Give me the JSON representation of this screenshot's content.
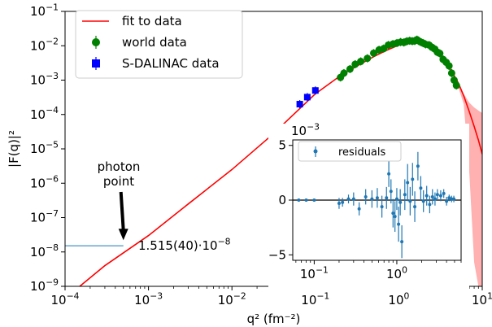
{
  "chart_data": [
    {
      "type": "line",
      "xscale": "log",
      "yscale": "log",
      "xlim": [
        0.0001,
        10
      ],
      "ylim": [
        1e-09,
        0.1
      ],
      "xlabel": "q² (fm⁻²)",
      "ylabel": "|F(q)|²",
      "grid": false,
      "legend_position": "top-left",
      "x_ticks": [
        {
          "value": 0.0001,
          "base": "10",
          "exp": "−4"
        },
        {
          "value": 0.001,
          "base": "10",
          "exp": "−3"
        },
        {
          "value": 0.01,
          "base": "10",
          "exp": "−2"
        },
        {
          "value": 0.1,
          "base": "10",
          "exp": "−1"
        },
        {
          "value": 1,
          "base": "10",
          "exp": "0"
        },
        {
          "value": 10,
          "base": "10",
          "exp": "1"
        }
      ],
      "y_ticks": [
        {
          "value": 1e-09,
          "base": "10",
          "exp": "−9"
        },
        {
          "value": 1e-08,
          "base": "10",
          "exp": "−8"
        },
        {
          "value": 1e-07,
          "base": "10",
          "exp": "−7"
        },
        {
          "value": 1e-06,
          "base": "10",
          "exp": "−6"
        },
        {
          "value": 1e-05,
          "base": "10",
          "exp": "−5"
        },
        {
          "value": 0.0001,
          "base": "10",
          "exp": "−4"
        },
        {
          "value": 0.001,
          "base": "10",
          "exp": "−3"
        },
        {
          "value": 0.01,
          "base": "10",
          "exp": "−2"
        },
        {
          "value": 0.1,
          "base": "10",
          "exp": "−1"
        }
      ],
      "legend": [
        {
          "label": "fit to data",
          "marker": "line",
          "color": "#ff0000"
        },
        {
          "label": "world data",
          "marker": "circle",
          "color": "#008000"
        },
        {
          "label": "S-DALINAC data",
          "marker": "square",
          "color": "#0000ff"
        }
      ],
      "series": [
        {
          "name": "fit to data",
          "color": "#ff0000",
          "x": [
            0.00015,
            0.0003,
            0.001,
            0.003,
            0.01,
            0.03,
            0.1,
            0.2,
            0.3,
            0.5,
            0.7,
            1.0,
            1.4,
            2.0,
            2.8,
            3.6,
            4.5,
            5.2,
            6.0,
            7.0,
            8.0,
            9.0,
            10.0
          ],
          "y": [
            1e-09,
            4e-09,
            3e-08,
            2.5e-07,
            2.5e-06,
            2.5e-05,
            0.0004,
            0.00135,
            0.0024,
            0.0048,
            0.0072,
            0.0105,
            0.0135,
            0.0125,
            0.0075,
            0.0035,
            0.0015,
            0.0008,
            0.00035,
            0.00012,
            4.5e-05,
            1.8e-05,
            7e-06
          ]
        },
        {
          "name": "fit uncertainty",
          "color": "#ffb0b0",
          "x": [
            5.0,
            6.0,
            7.0,
            8.0,
            9.0,
            10.0
          ],
          "upper": [
            0.0008,
            0.0004,
            0.00022,
            0.00016,
            0.00013,
            0.00011
          ],
          "lower": [
            0.0008,
            0.0002,
            2e-06,
            5e-09,
            1e-09,
            1e-09
          ]
        },
        {
          "name": "world data",
          "color": "#008000",
          "x": [
            0.2,
            0.22,
            0.26,
            0.3,
            0.35,
            0.42,
            0.5,
            0.58,
            0.66,
            0.75,
            0.85,
            0.95,
            1.05,
            1.15,
            1.25,
            1.35,
            1.45,
            1.55,
            1.65,
            1.8,
            1.95,
            2.1,
            2.3,
            2.5,
            2.7,
            2.9,
            3.1,
            3.4,
            3.7,
            4.0,
            4.3,
            4.6,
            4.9
          ],
          "y": [
            0.0012,
            0.0016,
            0.0021,
            0.0029,
            0.0035,
            0.0043,
            0.0061,
            0.0076,
            0.0083,
            0.0105,
            0.0112,
            0.012,
            0.0128,
            0.0125,
            0.0135,
            0.014,
            0.0136,
            0.0138,
            0.015,
            0.0131,
            0.012,
            0.011,
            0.0105,
            0.009,
            0.008,
            0.0065,
            0.006,
            0.004,
            0.0033,
            0.0026,
            0.0016,
            0.001,
            0.0007
          ]
        },
        {
          "name": "S-DALINAC data",
          "color": "#0000ff",
          "x": [
            0.065,
            0.08,
            0.1
          ],
          "y": [
            0.0002,
            0.00032,
            0.0005
          ]
        },
        {
          "name": "photon point line",
          "color": "#1f77b4",
          "x": [
            0.0001,
            0.0005
          ],
          "y": [
            1.515e-08,
            1.515e-08
          ]
        }
      ],
      "annotations": [
        {
          "text_lines": [
            "photon",
            "point"
          ],
          "arrow_to": {
            "x": 0.0005,
            "y": 2.2e-08
          }
        },
        {
          "text": "1.515(40)·10",
          "exp": "−8"
        }
      ]
    },
    {
      "type": "scatter",
      "inset": true,
      "xscale": "log",
      "xlim": [
        0.055,
        6.0
      ],
      "ylim": [
        -0.0055,
        0.0055
      ],
      "y_offset_text": {
        "base": "10",
        "exp": "−3"
      },
      "x_ticks": [
        {
          "value": 0.1,
          "base": "10",
          "exp": "−1"
        },
        {
          "value": 1,
          "base": "10",
          "exp": "0"
        }
      ],
      "y_ticks": [
        {
          "value": 0.005,
          "label": "5"
        },
        {
          "value": 0,
          "label": "0"
        },
        {
          "value": -0.005,
          "label": "−5"
        }
      ],
      "zero_line": true,
      "legend": [
        {
          "label": "residuals",
          "color": "#1f77b4"
        }
      ],
      "series": [
        {
          "name": "residuals",
          "color": "#1f77b4",
          "x": [
            0.065,
            0.08,
            0.1,
            0.2,
            0.22,
            0.26,
            0.3,
            0.35,
            0.42,
            0.5,
            0.58,
            0.66,
            0.75,
            0.8,
            0.85,
            0.9,
            0.95,
            1.0,
            1.05,
            1.1,
            1.15,
            1.25,
            1.35,
            1.45,
            1.55,
            1.65,
            1.8,
            1.95,
            2.1,
            2.3,
            2.5,
            2.7,
            2.9,
            3.1,
            3.4,
            3.7,
            4.0,
            4.3,
            4.6,
            4.9
          ],
          "y": [
            0,
            0,
            0,
            -0.0003,
            -0.0002,
            0.0001,
            0.0001,
            -0.0008,
            0.0003,
            0.0001,
            0.0002,
            -0.0006,
            0.0002,
            0.0024,
            0.0008,
            -0.0012,
            -0.0015,
            0.0001,
            -0.0022,
            -0.0002,
            -0.0038,
            0.0005,
            0.0016,
            -0.0001,
            0.0019,
            -0.0006,
            0.0031,
            0.0011,
            -0.0001,
            0.0004,
            -0.0004,
            0.0003,
            0.0001,
            0.0005,
            0.0004,
            0.0006,
            -0.0001,
            0.0002,
            0.0001,
            0.0001
          ],
          "err": [
            0.0001,
            0.0001,
            0.0001,
            0.0005,
            0.0004,
            0.0004,
            0.0006,
            0.0006,
            0.0007,
            0.0008,
            0.0009,
            0.001,
            0.001,
            0.0012,
            0.0011,
            0.0013,
            0.0014,
            0.001,
            0.0016,
            0.0012,
            0.0015,
            0.0014,
            0.0017,
            0.0013,
            0.0015,
            0.0014,
            0.0013,
            0.0011,
            0.001,
            0.0009,
            0.0008,
            0.0007,
            0.0006,
            0.0005,
            0.0005,
            0.0004,
            0.0004,
            0.0003,
            0.0003,
            0.0003
          ]
        }
      ]
    }
  ]
}
